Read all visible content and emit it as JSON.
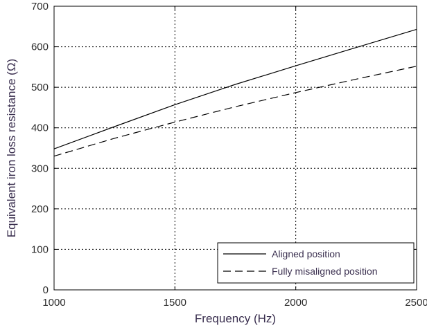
{
  "chart_data": {
    "type": "line",
    "xlabel": "Frequency (Hz)",
    "ylabel": "Equivalent iron loss resistance (Ω)",
    "xlim": [
      1000,
      2500
    ],
    "ylim": [
      0,
      700
    ],
    "xticks": [
      "1000",
      "1500",
      "2000",
      "2500"
    ],
    "yticks": [
      "0",
      "100",
      "200",
      "300",
      "400",
      "500",
      "600",
      "700"
    ],
    "grid": true,
    "legend_position": "bottom-right",
    "series": [
      {
        "name": "Aligned position",
        "style": "solid",
        "color": "#000000",
        "x": [
          1000,
          1250,
          1500,
          1750,
          2000,
          2250,
          2500
        ],
        "y": [
          348,
          403,
          457,
          507,
          553,
          598,
          643
        ]
      },
      {
        "name": "Fully misaligned position",
        "style": "dashed",
        "color": "#000000",
        "x": [
          1000,
          1250,
          1500,
          1750,
          2000,
          2250,
          2500
        ],
        "y": [
          330,
          374,
          414,
          452,
          487,
          520,
          552
        ]
      }
    ]
  }
}
